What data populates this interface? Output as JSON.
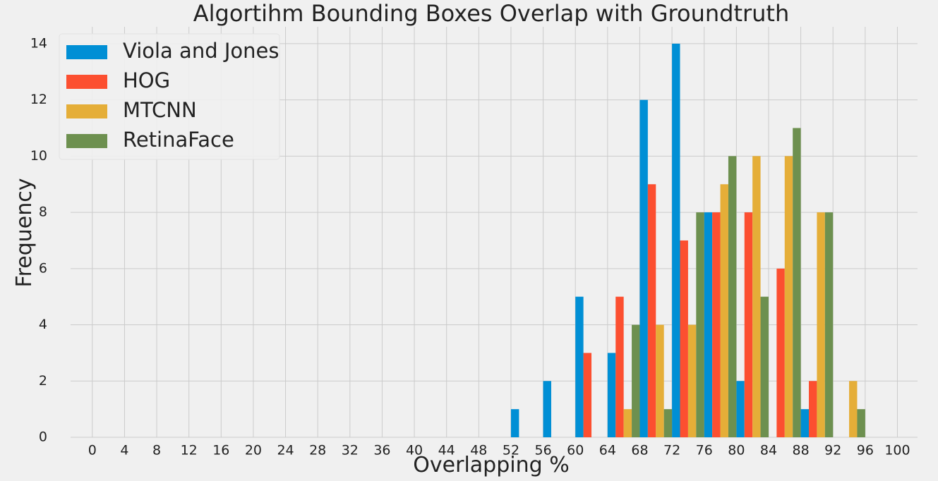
{
  "chart_data": {
    "type": "bar",
    "title": "Algortihm Bounding Boxes Overlap with Groundtruth",
    "xlabel": "Overlapping %",
    "ylabel": "Frequency",
    "ylim": [
      0,
      14.6
    ],
    "xlim": [
      -2.7,
      102.5
    ],
    "y_ticks": [
      0,
      2,
      4,
      6,
      8,
      10,
      12,
      14
    ],
    "x_ticks": [
      0,
      4,
      8,
      12,
      16,
      20,
      24,
      28,
      32,
      36,
      40,
      44,
      48,
      52,
      56,
      60,
      64,
      68,
      72,
      76,
      80,
      84,
      88,
      92,
      96,
      100
    ],
    "bin_starts": [
      52,
      56,
      60,
      64,
      68,
      72,
      76,
      80,
      84,
      88,
      92
    ],
    "bin_width": 4,
    "grid": true,
    "legend_position": "top-left",
    "series": [
      {
        "name": "Viola and Jones",
        "color": "#008fd5",
        "values": [
          1,
          2,
          5,
          3,
          12,
          14,
          8,
          2,
          0,
          1,
          0
        ]
      },
      {
        "name": "HOG",
        "color": "#fc4f30",
        "values": [
          0,
          0,
          3,
          5,
          9,
          7,
          8,
          8,
          6,
          2,
          0
        ]
      },
      {
        "name": "MTCNN",
        "color": "#e5ae38",
        "values": [
          0,
          0,
          0,
          1,
          4,
          4,
          9,
          10,
          10,
          8,
          2
        ]
      },
      {
        "name": "RetinaFace",
        "color": "#6d904f",
        "values": [
          0,
          0,
          0,
          4,
          1,
          8,
          10,
          5,
          11,
          8,
          1
        ]
      }
    ]
  }
}
